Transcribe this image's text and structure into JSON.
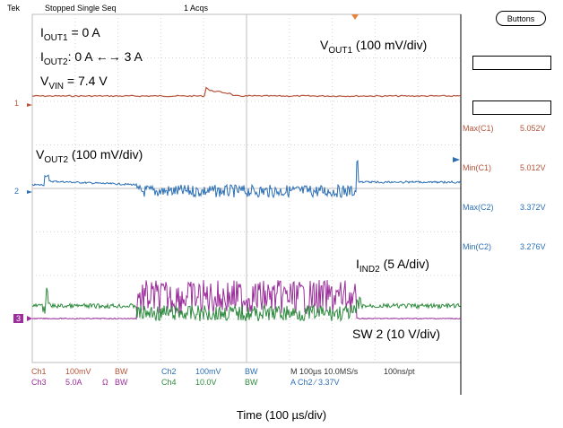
{
  "status": {
    "brand": "Tek",
    "state": "Stopped  Single Seq",
    "acqs": "1 Acqs"
  },
  "buttons_label": "Buttons",
  "annotations": {
    "iout1_main": "I",
    "iout1_sub": "OUT1",
    "iout1_rest": " = 0 A",
    "iout2_main": "I",
    "iout2_sub": "OUT2",
    "iout2_rest": ": 0 A ←→ 3 A",
    "vvin_main": "V",
    "vvin_sub": "VIN",
    "vvin_rest": " = 7.4 V",
    "vout1_main": "V",
    "vout1_sub": "OUT1",
    "vout1_rest": " (100  mV/div)",
    "vout2_main": "V",
    "vout2_sub": "OUT2",
    "vout2_rest": " (100 mV/div)",
    "iind2_main": "I",
    "iind2_sub": "IND2",
    "iind2_rest": " (5 A/div)",
    "sw2": "SW 2 (10 V/div)"
  },
  "channel_markers": {
    "ch1": "1",
    "ch2": "2",
    "ch3": "3"
  },
  "measurements": [
    {
      "label": "Max(C1)",
      "value": "5.052V",
      "color": "#b5543a"
    },
    {
      "label": "Min(C1)",
      "value": "5.012V",
      "color": "#b5543a"
    },
    {
      "label": "Max(C2)",
      "value": "3.372V",
      "color": "#2b6fb5"
    },
    {
      "label": "Min(C2)",
      "value": "3.276V",
      "color": "#2b6fb5"
    }
  ],
  "bottom": {
    "ch1": "Ch1",
    "ch1_scale": "100mV",
    "ch1_bw": "BW",
    "ch2": "Ch2",
    "ch2_scale": "100mV",
    "ch2_bw": "BW",
    "timebase": "M 100µs 10.0MS/s",
    "pt": "100ns/pt",
    "ch3": "Ch3",
    "ch3_scale": "5.0A",
    "ch3_ohm": "Ω",
    "ch3_bw": "BW",
    "ch4": "Ch4",
    "ch4_scale": "10.0V",
    "ch4_bw": "BW",
    "trigger": "A  Ch2  ⁄  3.37V"
  },
  "time_label": "Time  (100 µs/div)",
  "colors": {
    "ch1": "#b5543a",
    "ch2": "#2b6fb5",
    "ch3": "#9b2e9b",
    "ch4": "#2e8b3e"
  }
}
